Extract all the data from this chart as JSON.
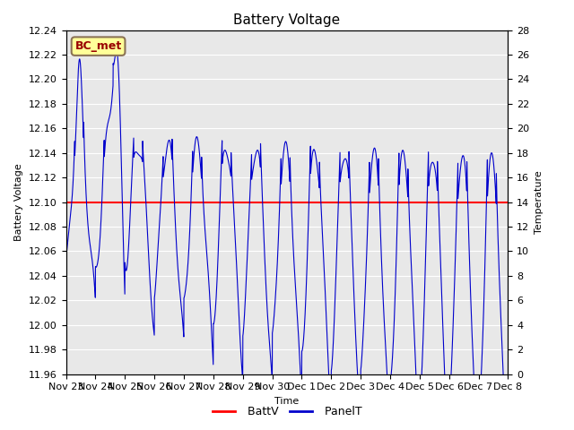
{
  "title": "Battery Voltage",
  "xlabel": "Time",
  "ylabel_left": "Battery Voltage",
  "ylabel_right": "Temperature",
  "ylim_left": [
    11.96,
    12.24
  ],
  "ylim_right": [
    0,
    28
  ],
  "yticks_left": [
    11.96,
    11.98,
    12.0,
    12.02,
    12.04,
    12.06,
    12.08,
    12.1,
    12.12,
    12.14,
    12.16,
    12.18,
    12.2,
    12.22,
    12.24
  ],
  "yticks_right": [
    0,
    2,
    4,
    6,
    8,
    10,
    12,
    14,
    16,
    18,
    20,
    22,
    24,
    26,
    28
  ],
  "batt_v": 12.1,
  "batt_color": "#ff0000",
  "panel_color": "#0000cc",
  "fig_bg_color": "#ffffff",
  "plot_bg_color": "#e8e8e8",
  "grid_color": "#ffffff",
  "annotation_text": "BC_met",
  "annotation_bg": "#ffff99",
  "annotation_border": "#8B7355",
  "annotation_text_color": "#990000",
  "title_fontsize": 11,
  "axis_fontsize": 8,
  "tick_fontsize": 8,
  "legend_fontsize": 9,
  "x_tick_labels": [
    "Nov 23",
    "Nov 24",
    "Nov 25",
    "Nov 26",
    "Nov 27",
    "Nov 28",
    "Nov 29",
    "Nov 30",
    "Dec 1",
    "Dec 2",
    "Dec 3",
    "Dec 4",
    "Dec 5",
    "Dec 6",
    "Dec 7",
    "Dec 8"
  ]
}
